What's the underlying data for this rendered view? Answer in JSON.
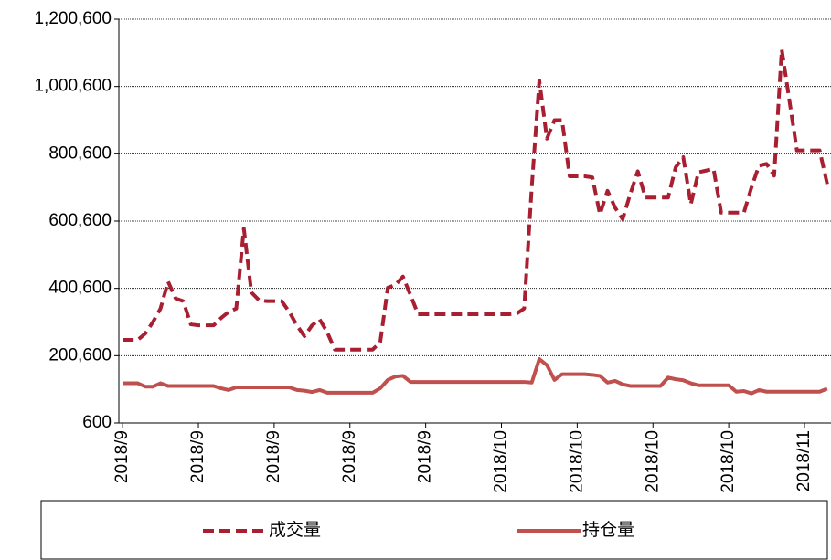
{
  "chart_data": {
    "type": "line",
    "categories": [
      "2018/9",
      null,
      null,
      null,
      null,
      null,
      null,
      null,
      null,
      null,
      "2018/9",
      null,
      null,
      null,
      null,
      null,
      null,
      null,
      null,
      null,
      "2018/9",
      null,
      null,
      null,
      null,
      null,
      null,
      null,
      null,
      null,
      "2018/9",
      null,
      null,
      null,
      null,
      null,
      null,
      null,
      null,
      null,
      "2018/9",
      null,
      null,
      null,
      null,
      null,
      null,
      null,
      null,
      null,
      "2018/10",
      null,
      null,
      null,
      null,
      null,
      null,
      null,
      null,
      null,
      "2018/10",
      null,
      null,
      null,
      null,
      null,
      null,
      null,
      null,
      null,
      "2018/10",
      null,
      null,
      null,
      null,
      null,
      null,
      null,
      null,
      null,
      "2018/10",
      null,
      null,
      null,
      null,
      null,
      null,
      null,
      null,
      null,
      "2018/11",
      null,
      null,
      null
    ],
    "series": [
      {
        "name": "成交量",
        "color": "#a81f32",
        "dash": true,
        "values": [
          247600,
          247600,
          247600,
          266600,
          300600,
          340600,
          420600,
          370600,
          362600,
          293600,
          290600,
          290600,
          290600,
          312600,
          330600,
          340600,
          578600,
          388600,
          365600,
          362600,
          362600,
          362600,
          330600,
          290600,
          258600,
          290600,
          308600,
          270600,
          218600,
          218600,
          218600,
          218600,
          218600,
          218600,
          240600,
          402600,
          410600,
          435600,
          380600,
          323600,
          323600,
          323600,
          323600,
          323600,
          323600,
          323600,
          323600,
          323600,
          323600,
          323600,
          323600,
          323600,
          325600,
          340600,
          700600,
          1018600,
          845600,
          900600,
          900600,
          733600,
          733600,
          733600,
          730600,
          620600,
          690600,
          640600,
          606600,
          680600,
          748600,
          670600,
          670600,
          670600,
          670600,
          760600,
          790600,
          650600,
          745600,
          750600,
          755600,
          625600,
          625600,
          625600,
          625600,
          700600,
          765600,
          770600,
          735600,
          1110600,
          960600,
          810600,
          810600,
          810600,
          810600,
          710600
        ]
      },
      {
        "name": "持仓量",
        "color": "#c0504d",
        "dash": false,
        "values": [
          118600,
          118600,
          118600,
          108600,
          108600,
          118600,
          110600,
          110600,
          110600,
          110600,
          110600,
          110600,
          110600,
          103600,
          98600,
          106600,
          106600,
          106600,
          106600,
          106600,
          106600,
          106600,
          106600,
          98600,
          96600,
          92600,
          98600,
          90600,
          90600,
          90600,
          90600,
          90600,
          90600,
          90600,
          103600,
          128600,
          138600,
          140600,
          122600,
          122600,
          122600,
          122600,
          122600,
          122600,
          122600,
          122600,
          122600,
          122600,
          122600,
          122600,
          122600,
          122600,
          122600,
          122600,
          120600,
          190600,
          172600,
          128600,
          145600,
          145600,
          145600,
          145600,
          143600,
          140600,
          120600,
          125600,
          115600,
          110600,
          110600,
          110600,
          110600,
          110600,
          135600,
          130600,
          127600,
          118600,
          112600,
          112600,
          112600,
          112600,
          112600,
          93600,
          95600,
          88600,
          98600,
          93600,
          93600,
          93600,
          93600,
          93600,
          93600,
          93600,
          93600,
          102600
        ]
      }
    ],
    "ylim": [
      600,
      1200600
    ],
    "yticks": [
      600,
      {
        "value": 200600,
        "label": "200,600"
      },
      {
        "value": 400600,
        "label": "400,600"
      },
      {
        "value": 600600,
        "label": "600,600"
      },
      {
        "value": 800600,
        "label": "800,600"
      },
      {
        "value": 1000600,
        "label": "1,000,600"
      },
      {
        "value": 1200600,
        "label": "1,200,600"
      }
    ],
    "grid": true,
    "legend": "bottom"
  }
}
